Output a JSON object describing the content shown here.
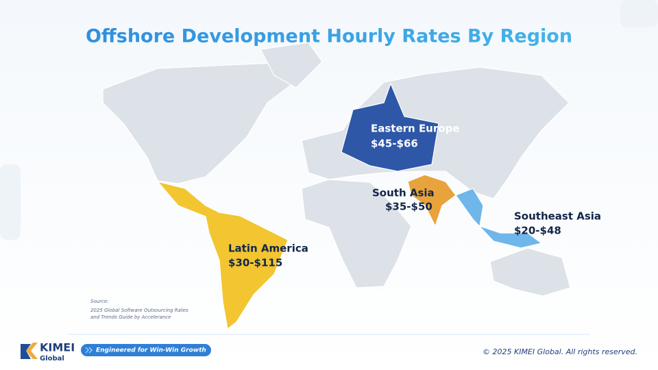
{
  "title": "Offshore Development Hourly Rates By Region",
  "regions": [
    {
      "name": "Eastern Europe",
      "rate": "$45-$66"
    },
    {
      "name": "South Asia",
      "rate": "$35-$50"
    },
    {
      "name": "Southeast Asia",
      "rate": "$20-$48"
    },
    {
      "name": "Latin America",
      "rate": "$30-$115"
    }
  ],
  "source": [
    "Source:",
    "2025 Global Software Outsourcing Rates",
    "and Trends Guide by Accelerance"
  ],
  "footer": {
    "brand": "KIMEI",
    "brand_sub": "Global",
    "tagline": "Engineered for Win-Win Growth",
    "copyright": "© 2025 KIMEI Global. All rights reserved."
  }
}
